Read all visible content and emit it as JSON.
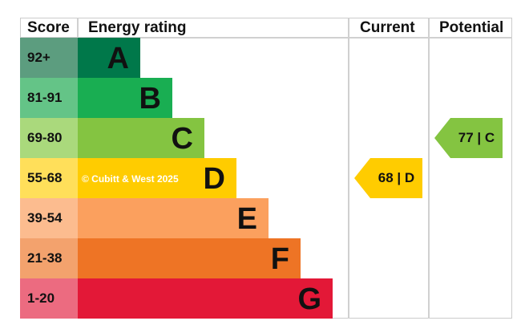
{
  "chart_data": {
    "type": "table",
    "headers": {
      "score": "Score",
      "rating": "Energy rating",
      "current": "Current",
      "potential": "Potential"
    },
    "bands": [
      {
        "score": "92+",
        "letter": "A",
        "color": "#00784a",
        "score_color": "#5c9d7f"
      },
      {
        "score": "81-91",
        "letter": "B",
        "color": "#19ae52",
        "score_color": "#64c487"
      },
      {
        "score": "69-80",
        "letter": "C",
        "color": "#84c441",
        "score_color": "#aad97c"
      },
      {
        "score": "55-68",
        "letter": "D",
        "color": "#ffcc00",
        "score_color": "#ffdf5a"
      },
      {
        "score": "39-54",
        "letter": "E",
        "color": "#fba05e",
        "score_color": "#fcbc8f"
      },
      {
        "score": "21-38",
        "letter": "F",
        "color": "#ee7425",
        "score_color": "#f3a26d"
      },
      {
        "score": "1-20",
        "letter": "G",
        "color": "#e31837",
        "score_color": "#ec6b80"
      }
    ],
    "current": {
      "value": 68,
      "band": "D",
      "label": "68 | D",
      "color": "#ffcc00"
    },
    "potential": {
      "value": 77,
      "band": "C",
      "label": "77 | C",
      "color": "#84c441"
    }
  },
  "watermark": "© Cubitt & West 2025"
}
